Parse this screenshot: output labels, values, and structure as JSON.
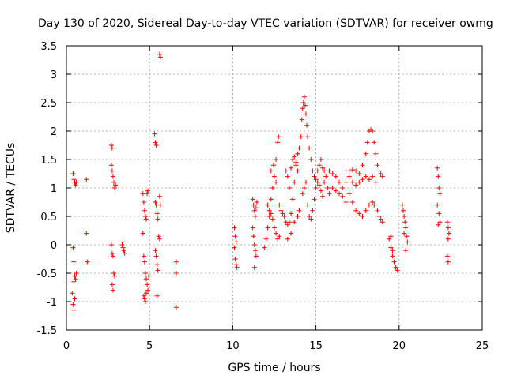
{
  "chart_data": {
    "type": "scatter",
    "title": "Day 130 of 2020, Sidereal Day-to-day VTEC variation (SDTVAR) for receiver owmg",
    "xlabel": "GPS time / hours",
    "ylabel": "SDTVAR / TECUs",
    "xlim": [
      0,
      25
    ],
    "ylim": [
      -1.5,
      3.5
    ],
    "xticks": [
      "0",
      "5",
      "10",
      "15",
      "20",
      "25"
    ],
    "yticks": [
      "-1.5",
      "-1",
      "-0.5",
      "0",
      "0.5",
      "1",
      "1.5",
      "2",
      "2.5",
      "3",
      "3.5"
    ],
    "grid": true,
    "marker": "plus",
    "color": "#ff0000",
    "series": [
      {
        "name": "SDTVAR",
        "points": [
          [
            0.4,
            1.25
          ],
          [
            0.45,
            1.15
          ],
          [
            0.5,
            1.1
          ],
          [
            0.55,
            1.05
          ],
          [
            0.6,
            1.1
          ],
          [
            0.4,
            -0.05
          ],
          [
            0.45,
            -0.3
          ],
          [
            0.5,
            -0.55
          ],
          [
            0.55,
            -0.6
          ],
          [
            0.45,
            -0.65
          ],
          [
            0.6,
            -0.5
          ],
          [
            0.4,
            -1.05
          ],
          [
            0.45,
            -1.15
          ],
          [
            0.5,
            -0.95
          ],
          [
            0.35,
            -0.85
          ],
          [
            1.2,
            1.15
          ],
          [
            1.2,
            0.2
          ],
          [
            1.25,
            -0.3
          ],
          [
            2.7,
            1.75
          ],
          [
            2.75,
            1.7
          ],
          [
            2.7,
            1.4
          ],
          [
            2.75,
            1.3
          ],
          [
            2.8,
            1.2
          ],
          [
            2.85,
            1.1
          ],
          [
            2.9,
            1.0
          ],
          [
            2.95,
            1.05
          ],
          [
            2.7,
            0.0
          ],
          [
            2.75,
            -0.15
          ],
          [
            2.8,
            -0.2
          ],
          [
            2.85,
            -0.5
          ],
          [
            2.9,
            -0.55
          ],
          [
            2.75,
            -0.7
          ],
          [
            2.8,
            -0.8
          ],
          [
            3.35,
            0.0
          ],
          [
            3.4,
            -0.05
          ],
          [
            3.45,
            -0.1
          ],
          [
            3.5,
            -0.15
          ],
          [
            3.4,
            0.05
          ],
          [
            4.6,
            0.9
          ],
          [
            4.65,
            0.75
          ],
          [
            4.7,
            0.6
          ],
          [
            4.75,
            0.5
          ],
          [
            4.8,
            0.45
          ],
          [
            4.85,
            0.9
          ],
          [
            4.9,
            0.95
          ],
          [
            4.6,
            0.2
          ],
          [
            4.65,
            -0.2
          ],
          [
            4.7,
            -0.3
          ],
          [
            4.75,
            -0.5
          ],
          [
            4.8,
            -0.6
          ],
          [
            4.85,
            -0.7
          ],
          [
            4.9,
            -0.8
          ],
          [
            4.95,
            -0.55
          ],
          [
            4.65,
            -0.9
          ],
          [
            4.7,
            -0.95
          ],
          [
            4.75,
            -1.0
          ],
          [
            4.8,
            -0.85
          ],
          [
            5.3,
            1.95
          ],
          [
            5.35,
            1.8
          ],
          [
            5.4,
            1.75
          ],
          [
            5.35,
            0.75
          ],
          [
            5.4,
            0.7
          ],
          [
            5.45,
            0.55
          ],
          [
            5.5,
            0.45
          ],
          [
            5.6,
            0.85
          ],
          [
            5.65,
            0.7
          ],
          [
            5.35,
            -0.1
          ],
          [
            5.4,
            -0.2
          ],
          [
            5.45,
            -0.35
          ],
          [
            5.5,
            -0.45
          ],
          [
            5.45,
            -0.9
          ],
          [
            5.55,
            0.15
          ],
          [
            5.6,
            0.1
          ],
          [
            5.6,
            3.35
          ],
          [
            5.65,
            3.3
          ],
          [
            6.6,
            -0.3
          ],
          [
            6.6,
            -0.5
          ],
          [
            6.6,
            -1.1
          ],
          [
            10.1,
            0.3
          ],
          [
            10.15,
            0.15
          ],
          [
            10.2,
            0.05
          ],
          [
            10.1,
            -0.05
          ],
          [
            10.15,
            -0.25
          ],
          [
            10.2,
            -0.35
          ],
          [
            10.25,
            -0.4
          ],
          [
            11.2,
            0.8
          ],
          [
            11.25,
            0.7
          ],
          [
            11.3,
            0.6
          ],
          [
            11.35,
            0.5
          ],
          [
            11.4,
            0.65
          ],
          [
            11.45,
            0.75
          ],
          [
            11.2,
            0.3
          ],
          [
            11.25,
            0.15
          ],
          [
            11.3,
            0.0
          ],
          [
            11.35,
            -0.1
          ],
          [
            11.4,
            -0.2
          ],
          [
            11.3,
            -0.4
          ],
          [
            11.9,
            -0.05
          ],
          [
            12.0,
            0.1
          ],
          [
            12.1,
            0.3
          ],
          [
            12.2,
            0.5
          ],
          [
            12.3,
            0.8
          ],
          [
            12.4,
            1.0
          ],
          [
            12.5,
            1.2
          ],
          [
            12.6,
            1.5
          ],
          [
            12.7,
            1.8
          ],
          [
            12.75,
            1.9
          ],
          [
            12.1,
            0.7
          ],
          [
            12.2,
            0.6
          ],
          [
            12.3,
            0.55
          ],
          [
            12.4,
            0.45
          ],
          [
            12.5,
            0.3
          ],
          [
            12.6,
            0.2
          ],
          [
            12.7,
            0.1
          ],
          [
            12.8,
            0.15
          ],
          [
            12.3,
            1.3
          ],
          [
            12.45,
            1.4
          ],
          [
            12.6,
            1.1
          ],
          [
            12.8,
            0.7
          ],
          [
            12.9,
            0.6
          ],
          [
            13.0,
            0.55
          ],
          [
            13.1,
            0.5
          ],
          [
            13.2,
            0.4
          ],
          [
            13.3,
            0.35
          ],
          [
            13.4,
            0.4
          ],
          [
            13.5,
            0.55
          ],
          [
            13.6,
            0.8
          ],
          [
            13.7,
            1.1
          ],
          [
            13.8,
            1.4
          ],
          [
            13.9,
            1.6
          ],
          [
            14.0,
            1.7
          ],
          [
            14.1,
            1.9
          ],
          [
            13.2,
            1.3
          ],
          [
            13.3,
            1.2
          ],
          [
            13.4,
            1.0
          ],
          [
            13.5,
            1.35
          ],
          [
            13.6,
            1.5
          ],
          [
            13.7,
            1.55
          ],
          [
            13.8,
            1.45
          ],
          [
            13.9,
            1.3
          ],
          [
            13.3,
            0.1
          ],
          [
            13.5,
            0.2
          ],
          [
            13.7,
            0.4
          ],
          [
            13.9,
            0.5
          ],
          [
            14.0,
            0.6
          ],
          [
            14.15,
            2.2
          ],
          [
            14.2,
            2.4
          ],
          [
            14.25,
            2.5
          ],
          [
            14.3,
            2.6
          ],
          [
            14.35,
            2.45
          ],
          [
            14.4,
            2.3
          ],
          [
            14.45,
            2.1
          ],
          [
            14.5,
            1.9
          ],
          [
            14.6,
            1.7
          ],
          [
            14.7,
            1.5
          ],
          [
            14.2,
            0.9
          ],
          [
            14.3,
            1.0
          ],
          [
            14.4,
            1.1
          ],
          [
            14.5,
            0.7
          ],
          [
            14.6,
            0.5
          ],
          [
            14.7,
            0.45
          ],
          [
            14.8,
            0.6
          ],
          [
            14.9,
            0.8
          ],
          [
            15.0,
            1.0
          ],
          [
            14.8,
            1.3
          ],
          [
            14.9,
            1.2
          ],
          [
            15.0,
            1.15
          ],
          [
            15.1,
            1.3
          ],
          [
            15.2,
            1.4
          ],
          [
            15.3,
            1.5
          ],
          [
            15.4,
            1.35
          ],
          [
            15.5,
            1.3
          ],
          [
            15.1,
            1.1
          ],
          [
            15.2,
            1.05
          ],
          [
            15.3,
            0.95
          ],
          [
            15.4,
            0.85
          ],
          [
            15.5,
            1.1
          ],
          [
            15.6,
            1.2
          ],
          [
            15.7,
            1.0
          ],
          [
            15.8,
            0.9
          ],
          [
            15.8,
            1.3
          ],
          [
            16.0,
            1.25
          ],
          [
            16.2,
            1.2
          ],
          [
            16.4,
            1.1
          ],
          [
            16.6,
            1.0
          ],
          [
            16.8,
            1.1
          ],
          [
            17.0,
            1.2
          ],
          [
            16.0,
            1.0
          ],
          [
            16.2,
            0.95
          ],
          [
            16.4,
            0.9
          ],
          [
            16.6,
            0.85
          ],
          [
            16.8,
            0.75
          ],
          [
            17.0,
            0.9
          ],
          [
            16.8,
            1.3
          ],
          [
            17.0,
            1.3
          ],
          [
            17.2,
            1.32
          ],
          [
            17.4,
            1.3
          ],
          [
            17.6,
            1.25
          ],
          [
            17.8,
            1.4
          ],
          [
            18.0,
            1.6
          ],
          [
            18.1,
            1.8
          ],
          [
            18.2,
            2.0
          ],
          [
            18.3,
            2.03
          ],
          [
            18.4,
            2.0
          ],
          [
            18.5,
            1.8
          ],
          [
            18.6,
            1.6
          ],
          [
            18.7,
            1.4
          ],
          [
            17.2,
            1.1
          ],
          [
            17.4,
            1.05
          ],
          [
            17.6,
            1.1
          ],
          [
            17.8,
            1.15
          ],
          [
            18.0,
            1.2
          ],
          [
            18.2,
            1.15
          ],
          [
            18.4,
            1.2
          ],
          [
            18.6,
            1.1
          ],
          [
            17.2,
            0.75
          ],
          [
            17.4,
            0.6
          ],
          [
            17.6,
            0.55
          ],
          [
            17.8,
            0.5
          ],
          [
            18.0,
            0.6
          ],
          [
            18.2,
            0.7
          ],
          [
            18.4,
            0.75
          ],
          [
            18.5,
            0.7
          ],
          [
            18.7,
            0.6
          ],
          [
            18.8,
            0.5
          ],
          [
            18.9,
            0.45
          ],
          [
            19.0,
            0.4
          ],
          [
            18.8,
            1.3
          ],
          [
            18.9,
            1.25
          ],
          [
            19.0,
            1.2
          ],
          [
            19.4,
            0.1
          ],
          [
            19.5,
            -0.05
          ],
          [
            19.6,
            -0.2
          ],
          [
            19.7,
            -0.3
          ],
          [
            19.8,
            -0.4
          ],
          [
            19.9,
            -0.45
          ],
          [
            19.5,
            0.15
          ],
          [
            19.6,
            -0.1
          ],
          [
            20.2,
            0.7
          ],
          [
            20.25,
            0.6
          ],
          [
            20.3,
            0.5
          ],
          [
            20.35,
            0.4
          ],
          [
            20.4,
            0.3
          ],
          [
            20.45,
            0.15
          ],
          [
            20.5,
            0.05
          ],
          [
            20.4,
            -0.1
          ],
          [
            20.3,
            0.2
          ],
          [
            22.3,
            1.35
          ],
          [
            22.35,
            1.2
          ],
          [
            22.4,
            1.0
          ],
          [
            22.45,
            0.9
          ],
          [
            22.3,
            0.7
          ],
          [
            22.4,
            0.55
          ],
          [
            22.45,
            0.4
          ],
          [
            22.35,
            0.35
          ],
          [
            22.9,
            0.4
          ],
          [
            22.95,
            0.3
          ],
          [
            23.0,
            0.2
          ],
          [
            22.95,
            0.1
          ],
          [
            22.9,
            -0.2
          ],
          [
            22.95,
            -0.3
          ]
        ]
      }
    ]
  }
}
